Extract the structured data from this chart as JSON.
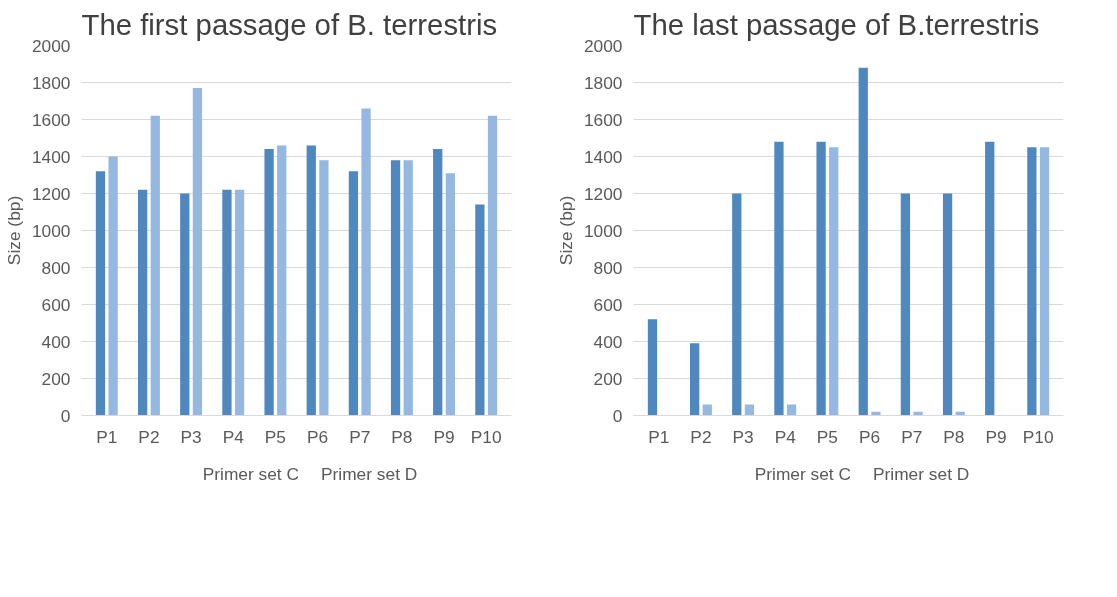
{
  "chart_data": [
    {
      "type": "bar",
      "title": "The first passage of B. terrestris",
      "ylabel": "Size (bp)",
      "categories": [
        "P1",
        "P2",
        "P3",
        "P4",
        "P5",
        "P6",
        "P7",
        "P8",
        "P9",
        "P10"
      ],
      "series": [
        {
          "name": "Primer set C",
          "color": "#4f87bf",
          "values": [
            1320,
            1220,
            1200,
            1220,
            1440,
            1460,
            1320,
            1380,
            1440,
            1140
          ]
        },
        {
          "name": "Primer set D",
          "color": "#95b8e0",
          "values": [
            1400,
            1620,
            1770,
            1220,
            1460,
            1380,
            1660,
            1380,
            1310,
            1620
          ]
        }
      ],
      "ylim": [
        0,
        2000
      ],
      "yticks": [
        0,
        200,
        400,
        600,
        800,
        1000,
        1200,
        1400,
        1600,
        1800,
        2000
      ],
      "grid": "y",
      "legend": "bottom"
    },
    {
      "type": "bar",
      "title": "The last passage of B.terrestris",
      "ylabel": "Size (bp)",
      "categories": [
        "P1",
        "P2",
        "P3",
        "P4",
        "P5",
        "P6",
        "P7",
        "P8",
        "P9",
        "P10"
      ],
      "series": [
        {
          "name": "Primer set C",
          "color": "#4f87bf",
          "values": [
            520,
            390,
            1200,
            1480,
            1480,
            1880,
            1200,
            1200,
            1480,
            1450
          ]
        },
        {
          "name": "Primer set D",
          "color": "#95b8e0",
          "values": [
            null,
            60,
            60,
            60,
            1450,
            20,
            20,
            20,
            null,
            1450
          ]
        }
      ],
      "ylim": [
        0,
        2000
      ],
      "yticks": [
        0,
        200,
        400,
        600,
        800,
        1000,
        1200,
        1400,
        1600,
        1800,
        2000
      ],
      "grid": "y",
      "legend": "bottom"
    }
  ]
}
